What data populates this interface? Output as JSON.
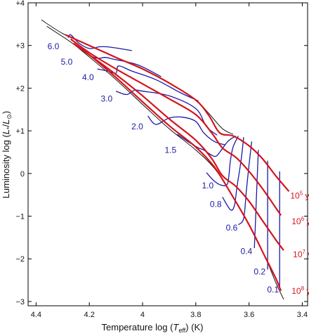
{
  "chart_data": {
    "type": "line",
    "xlabel": "Temperature   log (T_eff)   (K)",
    "ylabel": "Luminosity  log (L_*/L_⊙)",
    "xlim": [
      4.43,
      3.38
    ],
    "ylim": [
      -3.1,
      4.0
    ],
    "x_ticks": [
      4.4,
      4.2,
      4.0,
      3.8,
      3.6,
      3.4
    ],
    "x_tick_labels": [
      "4.4",
      "4.2",
      "4",
      "3.8",
      "3.6",
      "3.4"
    ],
    "y_ticks": [
      4,
      3,
      2,
      1,
      0,
      -1,
      -2,
      -3
    ],
    "y_tick_labels": [
      "+4",
      "+3",
      "+2",
      "+1",
      "0",
      "−1",
      "−2",
      "−3"
    ],
    "reference_lines": [
      {
        "name": "birthline",
        "color": "#000000",
        "points": [
          [
            4.38,
            3.6
          ],
          [
            4.3,
            3.28
          ],
          [
            4.2,
            3.0
          ],
          [
            4.1,
            2.72
          ],
          [
            4.0,
            2.45
          ],
          [
            3.9,
            2.12
          ],
          [
            3.8,
            1.72
          ],
          [
            3.75,
            1.4
          ],
          [
            3.7,
            1.05
          ],
          [
            3.66,
            0.92
          ]
        ]
      },
      {
        "name": "zams",
        "color": "#000000",
        "points": [
          [
            4.36,
            3.45
          ],
          [
            4.27,
            3.08
          ],
          [
            4.2,
            2.73
          ],
          [
            4.1,
            2.2
          ],
          [
            4.0,
            1.62
          ],
          [
            3.9,
            1.05
          ],
          [
            3.8,
            0.55
          ],
          [
            3.73,
            0.12
          ],
          [
            3.67,
            -0.45
          ],
          [
            3.6,
            -1.2
          ],
          [
            3.54,
            -1.95
          ],
          [
            3.5,
            -2.55
          ],
          [
            3.47,
            -2.95
          ]
        ]
      }
    ],
    "tracks": [
      {
        "mass": "6.0",
        "color": "#1a1aa8",
        "points": [
          [
            4.28,
            3.18
          ],
          [
            4.27,
            3.25
          ],
          [
            4.24,
            3.06
          ],
          [
            4.2,
            2.93
          ],
          [
            4.16,
            2.97
          ],
          [
            4.12,
            2.96
          ],
          [
            4.04,
            2.88
          ]
        ]
      },
      {
        "mass": "5.0",
        "color": "#1a1aa8",
        "points": [
          [
            4.23,
            2.95
          ],
          [
            4.2,
            2.78
          ],
          [
            4.17,
            2.7
          ],
          [
            4.14,
            2.72
          ],
          [
            4.11,
            2.68
          ],
          [
            4.02,
            2.55
          ],
          [
            3.93,
            2.27
          ]
        ]
      },
      {
        "mass": "4.0",
        "color": "#1a1aa8",
        "points": [
          [
            4.17,
            2.45
          ],
          [
            4.13,
            2.4
          ],
          [
            4.1,
            2.35
          ],
          [
            4.09,
            2.52
          ],
          [
            4.04,
            2.4
          ],
          [
            3.95,
            2.2
          ],
          [
            3.86,
            1.9
          ],
          [
            3.79,
            1.7
          ]
        ]
      },
      {
        "mass": "3.0",
        "color": "#1a1aa8",
        "points": [
          [
            4.1,
            1.93
          ],
          [
            4.06,
            1.85
          ],
          [
            4.03,
            1.95
          ],
          [
            4.0,
            1.93
          ],
          [
            3.9,
            1.82
          ],
          [
            3.8,
            1.52
          ],
          [
            3.76,
            1.1
          ],
          [
            3.72,
            0.9
          ]
        ]
      },
      {
        "mass": "2.0",
        "color": "#1a1aa8",
        "points": [
          [
            3.98,
            1.35
          ],
          [
            3.95,
            1.15
          ],
          [
            3.9,
            1.3
          ],
          [
            3.85,
            1.32
          ],
          [
            3.8,
            1.22
          ],
          [
            3.77,
            0.95
          ],
          [
            3.73,
            0.75
          ],
          [
            3.69,
            0.67
          ]
        ]
      },
      {
        "mass": "1.5",
        "color": "#1a1aa8",
        "points": [
          [
            3.87,
            0.92
          ],
          [
            3.83,
            0.75
          ],
          [
            3.79,
            0.6
          ],
          [
            3.77,
            0.55
          ],
          [
            3.73,
            0.4
          ],
          [
            3.71,
            0.5
          ],
          [
            3.68,
            0.75
          ],
          [
            3.65,
            0.88
          ]
        ]
      },
      {
        "mass": "1.0",
        "color": "#1a1aa8",
        "points": [
          [
            3.76,
            0.02
          ],
          [
            3.73,
            -0.18
          ],
          [
            3.7,
            -0.28
          ],
          [
            3.68,
            -0.22
          ],
          [
            3.67,
            0.3
          ],
          [
            3.66,
            0.62
          ],
          [
            3.64,
            0.88
          ]
        ]
      },
      {
        "mass": "0.8",
        "color": "#1a1aa8",
        "points": [
          [
            3.7,
            -0.55
          ],
          [
            3.67,
            -0.85
          ],
          [
            3.655,
            -0.75
          ],
          [
            3.645,
            -0.3
          ],
          [
            3.63,
            0.3
          ],
          [
            3.62,
            0.85
          ]
        ]
      },
      {
        "mass": "0.6",
        "color": "#1a1aa8",
        "points": [
          [
            3.64,
            -1.2
          ],
          [
            3.62,
            -1.05
          ],
          [
            3.61,
            -0.4
          ],
          [
            3.6,
            0.2
          ],
          [
            3.59,
            0.75
          ]
        ]
      },
      {
        "mass": "0.4",
        "color": "#1a1aa8",
        "points": [
          [
            3.58,
            -1.75
          ],
          [
            3.575,
            -1.0
          ],
          [
            3.57,
            -0.2
          ],
          [
            3.565,
            0.55
          ]
        ]
      },
      {
        "mass": "0.2",
        "color": "#1a1aa8",
        "points": [
          [
            3.53,
            -2.25
          ],
          [
            3.53,
            -1.4
          ],
          [
            3.53,
            -0.6
          ],
          [
            3.53,
            0.3
          ]
        ]
      },
      {
        "mass": "0.1",
        "color": "#1a1aa8",
        "points": [
          [
            3.485,
            -2.65
          ],
          [
            3.485,
            -1.8
          ],
          [
            3.485,
            -0.9
          ],
          [
            3.485,
            0.05
          ]
        ]
      }
    ],
    "isochrones": [
      {
        "age": "10^5 yr",
        "color": "#d4141c",
        "points": [
          [
            4.29,
            3.25
          ],
          [
            4.2,
            3.0
          ],
          [
            4.1,
            2.72
          ],
          [
            4.0,
            2.45
          ],
          [
            3.9,
            2.12
          ],
          [
            3.8,
            1.72
          ],
          [
            3.75,
            1.35
          ],
          [
            3.71,
            0.95
          ],
          [
            3.66,
            0.88
          ],
          [
            3.6,
            0.65
          ],
          [
            3.55,
            0.35
          ],
          [
            3.5,
            -0.05
          ],
          [
            3.45,
            -0.42
          ]
        ]
      },
      {
        "age": "10^6 yr",
        "color": "#d4141c",
        "points": [
          [
            4.27,
            3.15
          ],
          [
            4.2,
            2.83
          ],
          [
            4.1,
            2.45
          ],
          [
            4.0,
            2.1
          ],
          [
            3.9,
            1.75
          ],
          [
            3.8,
            1.38
          ],
          [
            3.74,
            0.95
          ],
          [
            3.7,
            0.6
          ],
          [
            3.65,
            0.38
          ],
          [
            3.6,
            0.05
          ],
          [
            3.55,
            -0.35
          ],
          [
            3.5,
            -0.8
          ],
          [
            3.48,
            -0.98
          ]
        ]
      },
      {
        "age": "10^7 yr",
        "color": "#d4141c",
        "points": [
          [
            4.25,
            3.0
          ],
          [
            4.2,
            2.78
          ],
          [
            4.1,
            2.32
          ],
          [
            4.0,
            1.82
          ],
          [
            3.9,
            1.28
          ],
          [
            3.8,
            0.78
          ],
          [
            3.74,
            0.35
          ],
          [
            3.7,
            -0.05
          ],
          [
            3.65,
            -0.3
          ],
          [
            3.6,
            -0.65
          ],
          [
            3.55,
            -1.1
          ],
          [
            3.5,
            -1.55
          ],
          [
            3.47,
            -1.8
          ]
        ]
      },
      {
        "age": "10^8 yr",
        "color": "#d4141c",
        "points": [
          [
            4.26,
            3.05
          ],
          [
            4.2,
            2.78
          ],
          [
            4.1,
            2.25
          ],
          [
            4.0,
            1.68
          ],
          [
            3.9,
            1.12
          ],
          [
            3.8,
            0.62
          ],
          [
            3.73,
            0.15
          ],
          [
            3.67,
            -0.45
          ],
          [
            3.6,
            -1.2
          ],
          [
            3.54,
            -1.95
          ],
          [
            3.5,
            -2.45
          ],
          [
            3.48,
            -2.75
          ]
        ]
      }
    ],
    "mass_labels": [
      {
        "text": "6.0",
        "x": 4.335,
        "y": 2.98
      },
      {
        "text": "5.0",
        "x": 4.285,
        "y": 2.62
      },
      {
        "text": "4.0",
        "x": 4.205,
        "y": 2.25
      },
      {
        "text": "3.0",
        "x": 4.135,
        "y": 1.75
      },
      {
        "text": "2.0",
        "x": 4.02,
        "y": 1.1
      },
      {
        "text": "1.5",
        "x": 3.895,
        "y": 0.55
      },
      {
        "text": "1.0",
        "x": 3.755,
        "y": -0.28
      },
      {
        "text": "0.8",
        "x": 3.725,
        "y": -0.72
      },
      {
        "text": "0.6",
        "x": 3.665,
        "y": -1.27
      },
      {
        "text": "0.4",
        "x": 3.61,
        "y": -1.82
      },
      {
        "text": "0.2",
        "x": 3.56,
        "y": -2.3
      },
      {
        "text": "0.1",
        "x": 3.51,
        "y": -2.72
      }
    ],
    "age_labels": [
      {
        "base": "10",
        "exp": "5",
        "unit": "yr",
        "x": 3.445,
        "y": -0.52
      },
      {
        "base": "10",
        "exp": "6",
        "unit": "yr",
        "x": 3.44,
        "y": -1.12
      },
      {
        "base": "10",
        "exp": "7",
        "unit": "yr",
        "x": 3.435,
        "y": -1.9
      },
      {
        "base": "10",
        "exp": "8",
        "unit": "yr",
        "x": 3.44,
        "y": -2.75
      }
    ]
  }
}
